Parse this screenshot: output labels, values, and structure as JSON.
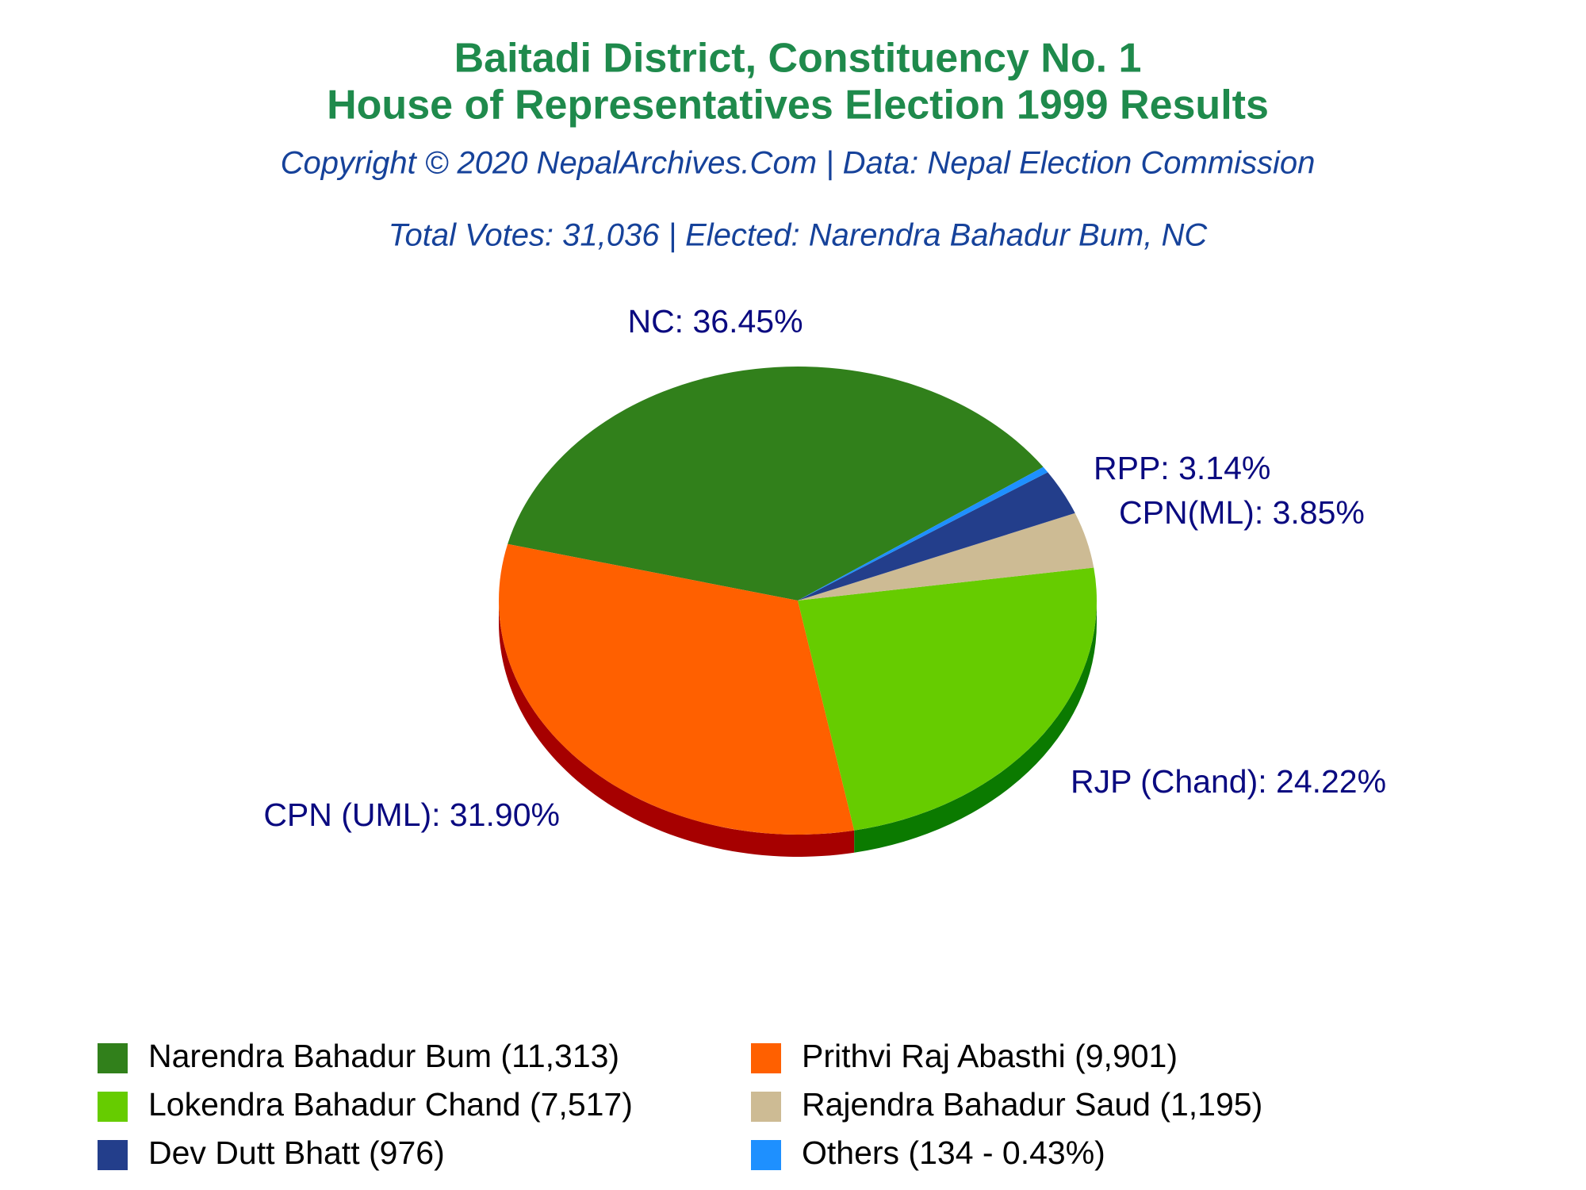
{
  "chart_data": {
    "type": "pie",
    "title": [
      "Baitadi District, Constituency No. 1",
      "House of Representatives Election 1999 Results"
    ],
    "subtitle": [
      "Copyright © 2020 NepalArchives.Com | Data: Nepal Election Commission",
      "Total Votes: 31,036 | Elected: Narendra Bahadur Bum, NC"
    ],
    "categories": [
      "Narendra Bahadur Bum (11,313)",
      "Prithvi Raj Abasthi (9,901)",
      "Lokendra Bahadur Chand (7,517)",
      "Rajendra Bahadur Saud (1,195)",
      "Dev Dutt Bhatt (976)",
      "Others (134 - 0.43%)"
    ],
    "values": [
      36.45,
      31.9,
      24.22,
      3.85,
      3.14,
      0.43
    ],
    "value_labels": [
      "NC: 36.45%",
      "CPN (UML): 31.90%",
      "RJP (Chand): 24.22%",
      "CPN(ML): 3.85%",
      "RPP: 3.14%",
      null
    ],
    "colors": [
      "#31801b",
      "#ff6000",
      "#66cc00",
      "#cdbb94",
      "#233e8b",
      "#1e90ff"
    ],
    "side_colors": [
      "#1f5410",
      "#a60000",
      "#0b7a00",
      "#8f8264",
      "#14275c",
      "#1260b0"
    ]
  }
}
